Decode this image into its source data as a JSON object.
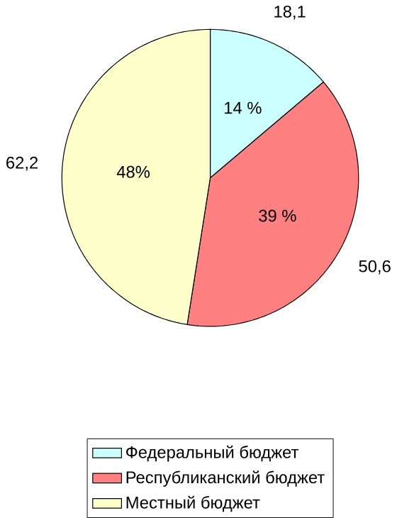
{
  "chart_data": {
    "type": "pie",
    "categories": [
      "Федеральный бюджет",
      "Республиканский бюджет",
      "Местный бюджет"
    ],
    "values": [
      18.1,
      50.6,
      62.2
    ],
    "value_labels": [
      "18,1",
      "50,6",
      "62,2"
    ],
    "annotations": [
      "14 %",
      "39 %",
      "48%"
    ],
    "colors": [
      "#ccffff",
      "#ff8080",
      "#ffffcc"
    ],
    "legend": "bottom"
  }
}
